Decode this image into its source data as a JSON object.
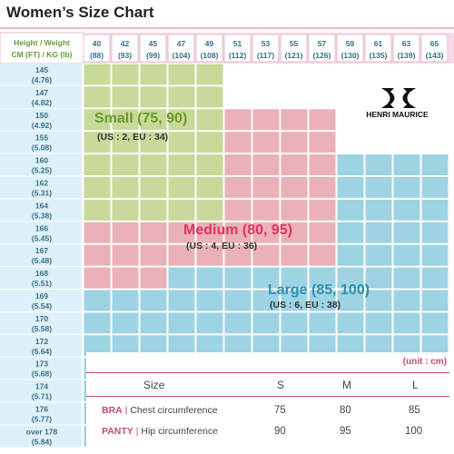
{
  "title": "Women’s Size Chart",
  "header": {
    "hw_line1": "Height / Weight",
    "hw_line2": "CM (FT) / KG (lb)",
    "weights": [
      {
        "kg": "40",
        "lb": "(88)"
      },
      {
        "kg": "42",
        "lb": "(93)"
      },
      {
        "kg": "45",
        "lb": "(99)"
      },
      {
        "kg": "47",
        "lb": "(104)"
      },
      {
        "kg": "49",
        "lb": "(108)"
      },
      {
        "kg": "51",
        "lb": "(112)"
      },
      {
        "kg": "53",
        "lb": "(117)"
      },
      {
        "kg": "55",
        "lb": "(121)"
      },
      {
        "kg": "57",
        "lb": "(126)"
      },
      {
        "kg": "59",
        "lb": "(130)"
      },
      {
        "kg": "61",
        "lb": "(135)"
      },
      {
        "kg": "63",
        "lb": "(139)"
      },
      {
        "kg": "65",
        "lb": "(143)"
      }
    ]
  },
  "heights": [
    {
      "cm": "145",
      "ft": "(4.76)"
    },
    {
      "cm": "147",
      "ft": "(4.82)"
    },
    {
      "cm": "150",
      "ft": "(4.92)"
    },
    {
      "cm": "155",
      "ft": "(5.08)"
    },
    {
      "cm": "160",
      "ft": "(5.25)"
    },
    {
      "cm": "162",
      "ft": "(5.31)"
    },
    {
      "cm": "164",
      "ft": "(5.38)"
    },
    {
      "cm": "166",
      "ft": "(5.45)"
    },
    {
      "cm": "167",
      "ft": "(5.48)"
    },
    {
      "cm": "168",
      "ft": "(5.51)"
    },
    {
      "cm": "169",
      "ft": "(5.54)"
    },
    {
      "cm": "170",
      "ft": "(5.58)"
    },
    {
      "cm": "172",
      "ft": "(5.64)"
    },
    {
      "cm": "173",
      "ft": "(5.68)"
    },
    {
      "cm": "174",
      "ft": "(5.71)"
    },
    {
      "cm": "176",
      "ft": "(5.77)"
    },
    {
      "cm": "over 178",
      "ft": "(5.84)"
    }
  ],
  "colors": {
    "small": "#c8d99a",
    "medium": "#eab1b8",
    "large": "#9dd3e3",
    "header_bg": "#f6dbe6",
    "rowhead_bg": "#def0f8",
    "small_text": "#6d9b2b",
    "medium_text": "#e0345a",
    "large_text": "#2c8fb2"
  },
  "regions": {
    "small": {
      "label": "Small (75, 90)",
      "sub": "(US : 2, EU : 34)"
    },
    "medium": {
      "label": "Medium (80, 95)",
      "sub": "(US : 4, EU : 36)"
    },
    "large": {
      "label": "Large (85, 100)",
      "sub": "(US : 6, EU : 38)"
    }
  },
  "brand": "HENRI MAURICE",
  "size_table": {
    "unit": "(unit : cm)",
    "header": {
      "size": "Size",
      "s": "S",
      "m": "M",
      "l": "L"
    },
    "rows": [
      {
        "label": "BRA",
        "measure": "Chest circumference",
        "s": "75",
        "m": "80",
        "l": "85"
      },
      {
        "label": "PANTY",
        "measure": "Hip circumference",
        "s": "90",
        "m": "95",
        "l": "100"
      }
    ]
  }
}
